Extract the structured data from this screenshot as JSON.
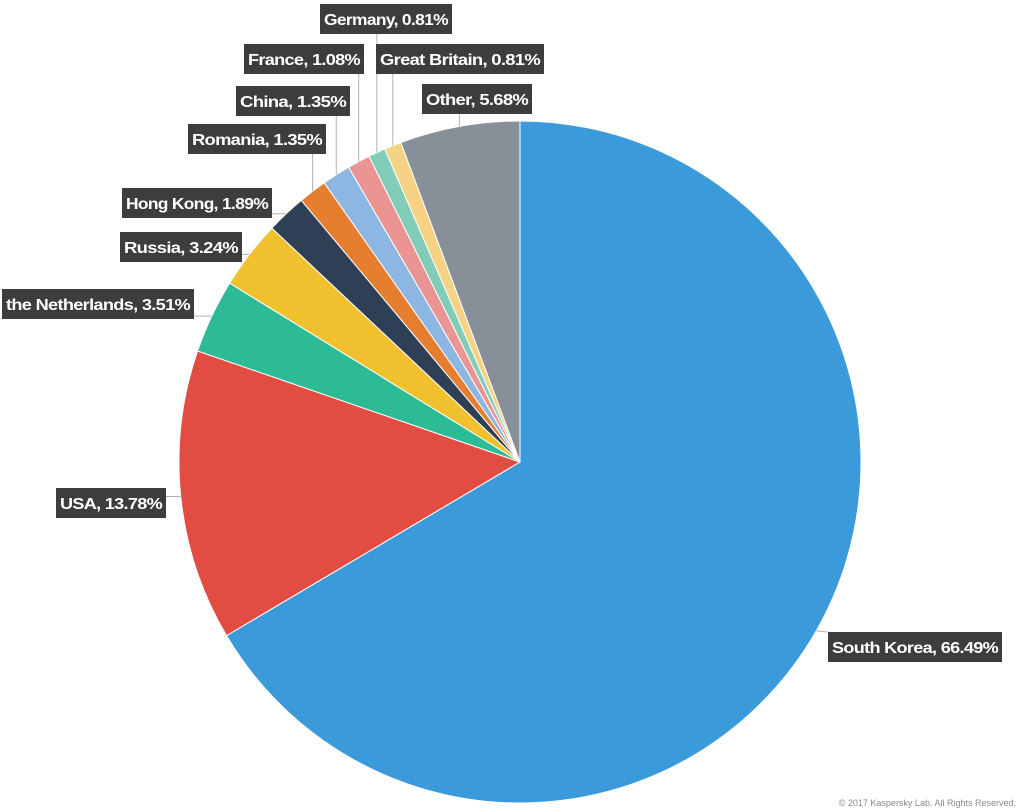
{
  "chart_data": {
    "type": "pie",
    "slices": [
      {
        "label": "South Korea, 66.49%",
        "value": 66.49,
        "color": "#3b9ad9"
      },
      {
        "label": "USA, 13.78%",
        "value": 13.78,
        "color": "#e34c42"
      },
      {
        "label": "the Netherlands, 3.51%",
        "value": 3.51,
        "color": "#2dbb96"
      },
      {
        "label": "Russia, 3.24%",
        "value": 3.24,
        "color": "#f0c02f"
      },
      {
        "label": "Hong Kong, 1.89%",
        "value": 1.89,
        "color": "#2f3f55"
      },
      {
        "label": "Romania, 1.35%",
        "value": 1.35,
        "color": "#e67e30"
      },
      {
        "label": "China, 1.35%",
        "value": 1.35,
        "color": "#8cb7e3"
      },
      {
        "label": "France, 1.08%",
        "value": 1.08,
        "color": "#ea9494"
      },
      {
        "label": "Germany, 0.81%",
        "value": 0.81,
        "color": "#82cdb8"
      },
      {
        "label": "Great Britain, 0.81%",
        "value": 0.81,
        "color": "#f6d284"
      },
      {
        "label": "Other, 5.68%",
        "value": 5.68,
        "color": "#878f99"
      }
    ],
    "start_angle": "12 o'clock",
    "direction": "clockwise"
  },
  "footer": {
    "copyright": "© 2017 Kaspersky Lab. All Rights Reserved."
  }
}
